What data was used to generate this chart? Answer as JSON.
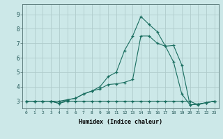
{
  "xlabel": "Humidex (Indice chaleur)",
  "background_color": "#cce8e8",
  "grid_color": "#b0cccc",
  "line_color": "#1a6e60",
  "x_ticks": [
    0,
    1,
    2,
    3,
    4,
    5,
    6,
    7,
    8,
    9,
    10,
    11,
    12,
    13,
    14,
    15,
    16,
    17,
    18,
    19,
    20,
    21,
    22,
    23
  ],
  "y_ticks": [
    3,
    4,
    5,
    6,
    7,
    8,
    9
  ],
  "xlim": [
    -0.5,
    23.5
  ],
  "ylim": [
    2.5,
    9.7
  ],
  "series1_x": [
    0,
    1,
    2,
    3,
    4,
    5,
    6,
    7,
    8,
    9,
    10,
    11,
    12,
    13,
    14,
    15,
    16,
    17,
    18,
    19,
    20,
    21,
    22,
    23
  ],
  "series1_y": [
    3.0,
    3.0,
    3.0,
    3.0,
    2.85,
    3.0,
    3.0,
    3.0,
    3.0,
    3.0,
    3.0,
    3.0,
    3.0,
    3.0,
    3.0,
    3.0,
    3.0,
    3.0,
    3.0,
    3.0,
    3.0,
    2.75,
    2.9,
    3.0
  ],
  "series2_x": [
    0,
    1,
    2,
    3,
    4,
    5,
    6,
    7,
    8,
    9,
    10,
    11,
    12,
    13,
    14,
    15,
    16,
    17,
    18,
    19,
    20,
    21,
    22,
    23
  ],
  "series2_y": [
    3.0,
    3.0,
    3.0,
    3.0,
    3.0,
    3.1,
    3.2,
    3.5,
    3.7,
    3.85,
    4.15,
    4.2,
    4.3,
    4.5,
    7.5,
    7.5,
    7.0,
    6.8,
    5.7,
    3.5,
    2.75,
    2.8,
    2.9,
    3.0
  ],
  "series3_x": [
    0,
    1,
    2,
    3,
    4,
    5,
    6,
    7,
    8,
    9,
    10,
    11,
    12,
    13,
    14,
    15,
    16,
    17,
    18,
    19,
    20,
    21,
    22,
    23
  ],
  "series3_y": [
    3.0,
    3.0,
    3.0,
    3.0,
    2.85,
    3.1,
    3.2,
    3.5,
    3.7,
    4.0,
    4.7,
    5.0,
    6.5,
    7.5,
    8.85,
    8.3,
    7.8,
    6.8,
    6.85,
    5.5,
    2.75,
    2.8,
    2.9,
    3.0
  ]
}
